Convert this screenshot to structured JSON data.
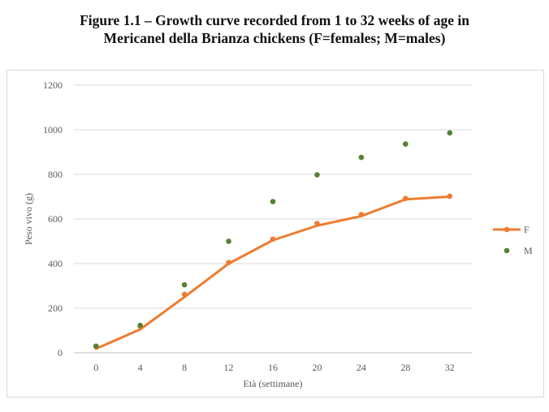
{
  "figure": {
    "title_line1": "Figure 1.1 – Growth curve recorded from 1 to 32 weeks of age in",
    "title_line2": "Mericanel della Brianza chickens (F=females; M=males)"
  },
  "chart_data": {
    "type": "line",
    "title": "",
    "xlabel": "Età (settimane)",
    "ylabel": "Peso vivo (g)",
    "x": [
      0,
      4,
      8,
      12,
      16,
      20,
      24,
      28,
      32
    ],
    "xticks": [
      "0",
      "4",
      "8",
      "12",
      "16",
      "20",
      "24",
      "28",
      "32"
    ],
    "yticks": [
      "0",
      "200",
      "400",
      "600",
      "800",
      "1000",
      "1200"
    ],
    "ylim": [
      0,
      1200
    ],
    "grid": "horizontal",
    "legend_position": "right",
    "series": [
      {
        "name": "F",
        "style": "points",
        "color": "#ED7D31",
        "values": [
          28,
          118,
          262,
          405,
          510,
          580,
          620,
          692,
          702
        ]
      },
      {
        "name": "F",
        "style": "line",
        "color": "#ED7D31",
        "values": [
          18,
          105,
          250,
          400,
          505,
          570,
          613,
          688,
          700
        ]
      },
      {
        "name": "M",
        "style": "points",
        "color": "#548235",
        "values": [
          30,
          123,
          305,
          500,
          678,
          798,
          876,
          936,
          986
        ]
      }
    ]
  }
}
